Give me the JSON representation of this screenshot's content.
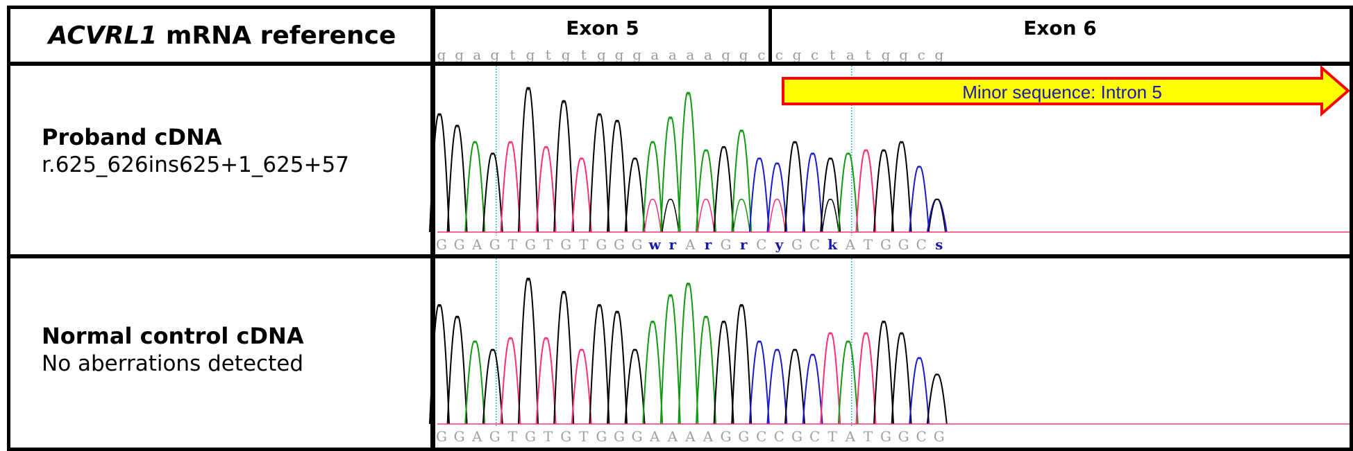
{
  "title": {
    "gene": "ACVRL1",
    "rest": " mRNA reference"
  },
  "exons": [
    {
      "label": "Exon 5"
    },
    {
      "label": "Exon 6"
    }
  ],
  "reference_sequence": [
    "g",
    "g",
    "a",
    "g",
    "t",
    "g",
    "t",
    "g",
    "t",
    "g",
    "g",
    "g",
    "a",
    "a",
    "a",
    "a",
    "g",
    "g",
    "c",
    "c",
    "g",
    "c",
    "t",
    "a",
    "t",
    "g",
    "g",
    "c",
    "g"
  ],
  "rows": [
    {
      "title": "Proband cDNA",
      "subtitle": "r.625_626ins625+1_625+57",
      "calls": [
        "G",
        "G",
        "A",
        "G",
        "T",
        "G",
        "T",
        "G",
        "T",
        "G",
        "G",
        "G",
        "w",
        "r",
        "A",
        "r",
        "G",
        "r",
        "C",
        "y",
        "G",
        "C",
        "k",
        "A",
        "T",
        "G",
        "G",
        "C",
        "s"
      ],
      "ambiguous_color": "#1a1aa8"
    },
    {
      "title": "Normal control cDNA",
      "subtitle": "No aberrations detected",
      "calls": [
        "G",
        "G",
        "A",
        "G",
        "T",
        "G",
        "T",
        "G",
        "T",
        "G",
        "G",
        "G",
        "A",
        "A",
        "A",
        "A",
        "G",
        "G",
        "C",
        "C",
        "G",
        "C",
        "T",
        "A",
        "T",
        "G",
        "G",
        "C",
        "G"
      ]
    }
  ],
  "annotation": {
    "label": "Minor sequence: Intron 5",
    "fill": "#ffff00",
    "stroke": "#ff0000",
    "text_color": "#1a1aa8"
  },
  "base_colors": {
    "G": "#000000",
    "A": "#119911",
    "T": "#ff2d7a",
    "C": "#1a1acc"
  },
  "guide_color": "#33aadd"
}
